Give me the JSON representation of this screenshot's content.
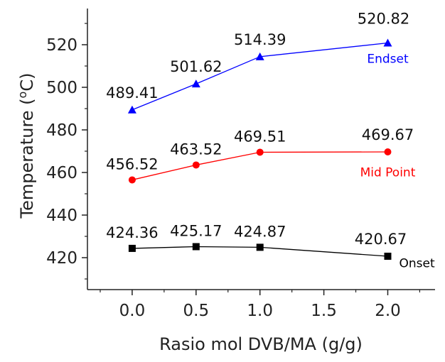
{
  "chart_data": {
    "type": "line",
    "xlabel": "Rasio mol DVB/MA (g/g)",
    "ylabel": "Temperature (oC)",
    "xlim": [
      -0.35,
      2.37
    ],
    "ylim": [
      405,
      537
    ],
    "xticks": [
      0.0,
      0.5,
      1.0,
      1.5,
      2.0
    ],
    "xtick_labels": [
      "0.0",
      "0.5",
      "1.0",
      "1.5",
      "2.0"
    ],
    "yticks": [
      420,
      440,
      460,
      480,
      500,
      520
    ],
    "ytick_labels": [
      "420",
      "440",
      "460",
      "480",
      "500",
      "520"
    ],
    "grid": false,
    "legend": "none (series labeled inline at right)",
    "series": [
      {
        "name": "Endset",
        "color": "#0000ff",
        "marker": "triangle",
        "x": [
          0.0,
          0.5,
          1.0,
          2.0
        ],
        "values": [
          489.41,
          501.62,
          514.39,
          520.82
        ],
        "labels": [
          "489.41",
          "501.62",
          "514.39",
          "520.82"
        ]
      },
      {
        "name": "Mid Point",
        "color": "#ff0000",
        "marker": "circle",
        "x": [
          0.0,
          0.5,
          1.0,
          2.0
        ],
        "values": [
          456.52,
          463.52,
          469.51,
          469.67
        ],
        "labels": [
          "456.52",
          "463.52",
          "469.51",
          "469.67"
        ]
      },
      {
        "name": "Onset",
        "color": "#000000",
        "marker": "square",
        "x": [
          0.0,
          0.5,
          1.0,
          2.0
        ],
        "values": [
          424.36,
          425.17,
          424.87,
          420.67
        ],
        "labels": [
          "424.36",
          "425.17",
          "424.87",
          "420.67"
        ]
      }
    ]
  }
}
